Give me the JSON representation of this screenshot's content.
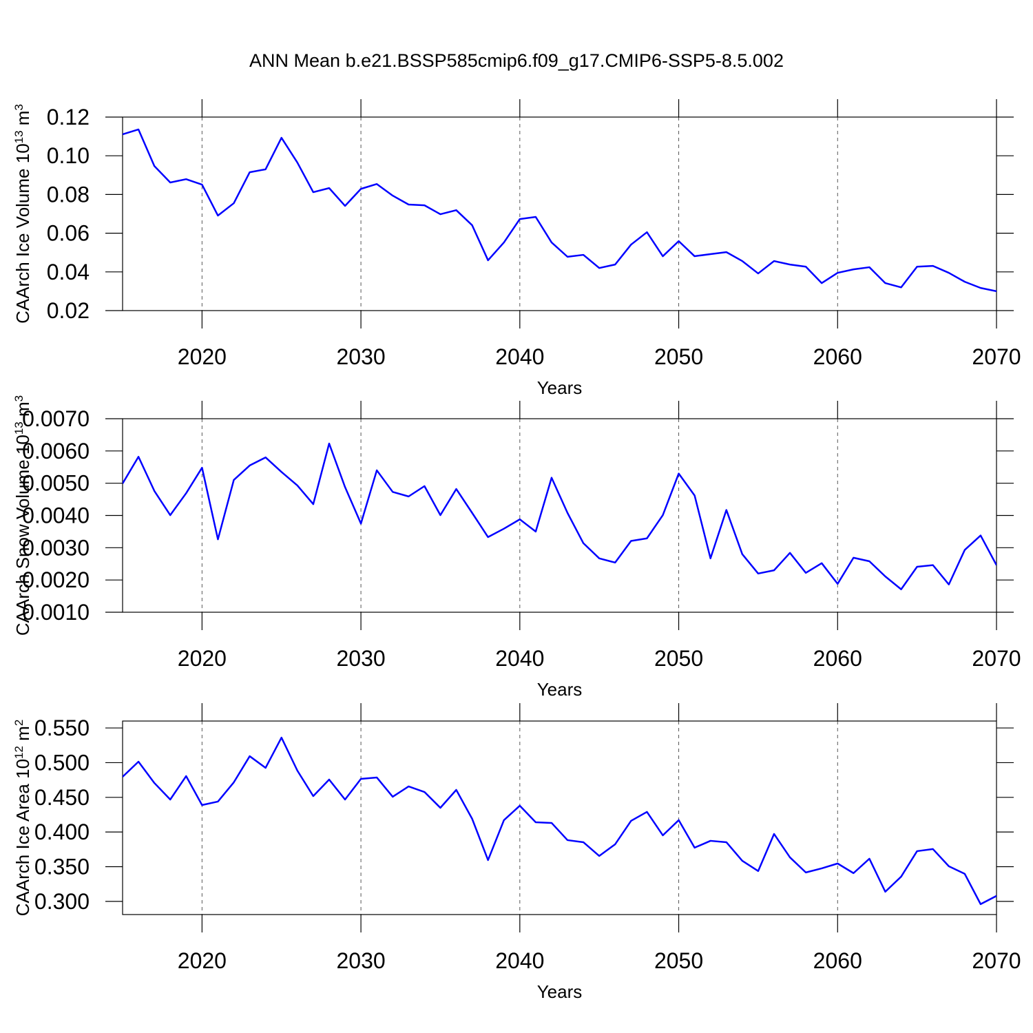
{
  "chart_data": [
    {
      "type": "line",
      "title": "ANN Mean b.e21.BSSP585cmip6.f09_g17.CMIP6-SSP5-8.5.002",
      "ylabel": [
        "CAArch Ice Volume 10",
        "13",
        " m",
        "3"
      ],
      "xlabel": "Years",
      "x": [
        2015,
        2016,
        2017,
        2018,
        2019,
        2020,
        2021,
        2022,
        2023,
        2024,
        2025,
        2026,
        2027,
        2028,
        2029,
        2030,
        2031,
        2032,
        2033,
        2034,
        2035,
        2036,
        2037,
        2038,
        2039,
        2040,
        2041,
        2042,
        2043,
        2044,
        2045,
        2046,
        2047,
        2048,
        2049,
        2050,
        2051,
        2052,
        2053,
        2054,
        2055,
        2056,
        2057,
        2058,
        2059,
        2060,
        2061,
        2062,
        2063,
        2064,
        2065,
        2066,
        2067,
        2068,
        2069,
        2070
      ],
      "series": [
        {
          "color": "#0000ff",
          "values": [
            0.1111,
            0.1136,
            0.0947,
            0.0862,
            0.0879,
            0.0851,
            0.0691,
            0.0755,
            0.0915,
            0.093,
            0.1093,
            0.0965,
            0.0812,
            0.0833,
            0.0741,
            0.0829,
            0.0854,
            0.0794,
            0.0748,
            0.0744,
            0.0698,
            0.0719,
            0.0641,
            0.046,
            0.0552,
            0.0673,
            0.0684,
            0.0552,
            0.0478,
            0.0488,
            0.042,
            0.0438,
            0.0541,
            0.0605,
            0.0481,
            0.0559,
            0.0481,
            0.0492,
            0.0502,
            0.0456,
            0.0392,
            0.0456,
            0.0438,
            0.0427,
            0.0342,
            0.0395,
            0.0413,
            0.0424,
            0.0342,
            0.032,
            0.0427,
            0.0431,
            0.0395,
            0.0349,
            0.0317,
            0.03
          ]
        }
      ],
      "xlim": [
        2015,
        2070
      ],
      "xticks": [
        2020,
        2030,
        2040,
        2050,
        2060,
        2070
      ],
      "ylim": [
        0.02,
        0.12
      ],
      "yticks": [
        {
          "value": 0.02,
          "label": "0.02"
        },
        {
          "value": 0.04,
          "label": "0.04"
        },
        {
          "value": 0.06,
          "label": "0.06"
        },
        {
          "value": 0.08,
          "label": "0.08"
        },
        {
          "value": 0.1,
          "label": "0.10"
        },
        {
          "value": 0.12,
          "label": "0.12"
        }
      ],
      "grid": true
    },
    {
      "type": "line",
      "ylabel": [
        "CAArch Snow Volume 10",
        "13",
        " m",
        "3"
      ],
      "xlabel": "Years",
      "x": [
        2015,
        2016,
        2017,
        2018,
        2019,
        2020,
        2021,
        2022,
        2023,
        2024,
        2025,
        2026,
        2027,
        2028,
        2029,
        2030,
        2031,
        2032,
        2033,
        2034,
        2035,
        2036,
        2037,
        2038,
        2039,
        2040,
        2041,
        2042,
        2043,
        2044,
        2045,
        2046,
        2047,
        2048,
        2049,
        2050,
        2051,
        2052,
        2053,
        2054,
        2055,
        2056,
        2057,
        2058,
        2059,
        2060,
        2061,
        2062,
        2063,
        2064,
        2065,
        2066,
        2067,
        2068,
        2069,
        2070
      ],
      "series": [
        {
          "color": "#0000ff",
          "values": [
            0.00499,
            0.00582,
            0.00476,
            0.00401,
            0.00469,
            0.00548,
            0.00326,
            0.0051,
            0.00555,
            0.0058,
            0.00535,
            0.00493,
            0.00435,
            0.00623,
            0.00488,
            0.00375,
            0.0054,
            0.00473,
            0.00459,
            0.00491,
            0.00401,
            0.00482,
            0.00408,
            0.00333,
            0.00359,
            0.00388,
            0.0035,
            0.00517,
            0.00408,
            0.00314,
            0.00267,
            0.00254,
            0.00321,
            0.00329,
            0.00401,
            0.0053,
            0.00462,
            0.00267,
            0.00417,
            0.0028,
            0.0022,
            0.0023,
            0.00284,
            0.00222,
            0.00252,
            0.00188,
            0.00269,
            0.00258,
            0.00211,
            0.00171,
            0.00241,
            0.00246,
            0.00186,
            0.00293,
            0.00338,
            0.00246
          ]
        }
      ],
      "xlim": [
        2015,
        2070
      ],
      "xticks": [
        2020,
        2030,
        2040,
        2050,
        2060,
        2070
      ],
      "ylim": [
        0.001,
        0.007
      ],
      "yticks": [
        {
          "value": 0.001,
          "label": "0.0010"
        },
        {
          "value": 0.002,
          "label": "0.0020"
        },
        {
          "value": 0.003,
          "label": "0.0030"
        },
        {
          "value": 0.004,
          "label": "0.0040"
        },
        {
          "value": 0.005,
          "label": "0.0050"
        },
        {
          "value": 0.006,
          "label": "0.0060"
        },
        {
          "value": 0.007,
          "label": "0.0070"
        }
      ],
      "grid": true
    },
    {
      "type": "line",
      "ylabel": [
        "CAArch Ice Area 10",
        "12",
        " m",
        "2"
      ],
      "xlabel": "Years",
      "x": [
        2015,
        2016,
        2017,
        2018,
        2019,
        2020,
        2021,
        2022,
        2023,
        2024,
        2025,
        2026,
        2027,
        2028,
        2029,
        2030,
        2031,
        2032,
        2033,
        2034,
        2035,
        2036,
        2037,
        2038,
        2039,
        2040,
        2041,
        2042,
        2043,
        2044,
        2045,
        2046,
        2047,
        2048,
        2049,
        2050,
        2051,
        2052,
        2053,
        2054,
        2055,
        2056,
        2057,
        2058,
        2059,
        2060,
        2061,
        2062,
        2063,
        2064,
        2065,
        2066,
        2067,
        2068,
        2069,
        2070
      ],
      "series": [
        {
          "color": "#0000ff",
          "values": [
            0.4796,
            0.5014,
            0.4707,
            0.4468,
            0.4806,
            0.4389,
            0.4439,
            0.4716,
            0.5093,
            0.4925,
            0.5361,
            0.4885,
            0.4518,
            0.4756,
            0.4468,
            0.4766,
            0.4786,
            0.4508,
            0.4657,
            0.4577,
            0.4349,
            0.4607,
            0.419,
            0.3595,
            0.4171,
            0.4379,
            0.4141,
            0.4131,
            0.3883,
            0.3853,
            0.3655,
            0.3823,
            0.4161,
            0.429,
            0.3952,
            0.4171,
            0.3774,
            0.3873,
            0.3853,
            0.3585,
            0.3437,
            0.3972,
            0.3635,
            0.3417,
            0.3476,
            0.3546,
            0.3407,
            0.3615,
            0.3139,
            0.3357,
            0.3724,
            0.3754,
            0.3506,
            0.3397,
            0.296,
            0.3079
          ]
        }
      ],
      "xlim": [
        2015,
        2070
      ],
      "xticks": [
        2020,
        2030,
        2040,
        2050,
        2060,
        2070
      ],
      "ylim": [
        0.281,
        0.56
      ],
      "yticks": [
        {
          "value": 0.3,
          "label": "0.300"
        },
        {
          "value": 0.35,
          "label": "0.350"
        },
        {
          "value": 0.4,
          "label": "0.400"
        },
        {
          "value": 0.45,
          "label": "0.450"
        },
        {
          "value": 0.5,
          "label": "0.500"
        },
        {
          "value": 0.55,
          "label": "0.550"
        }
      ],
      "grid": true
    }
  ]
}
